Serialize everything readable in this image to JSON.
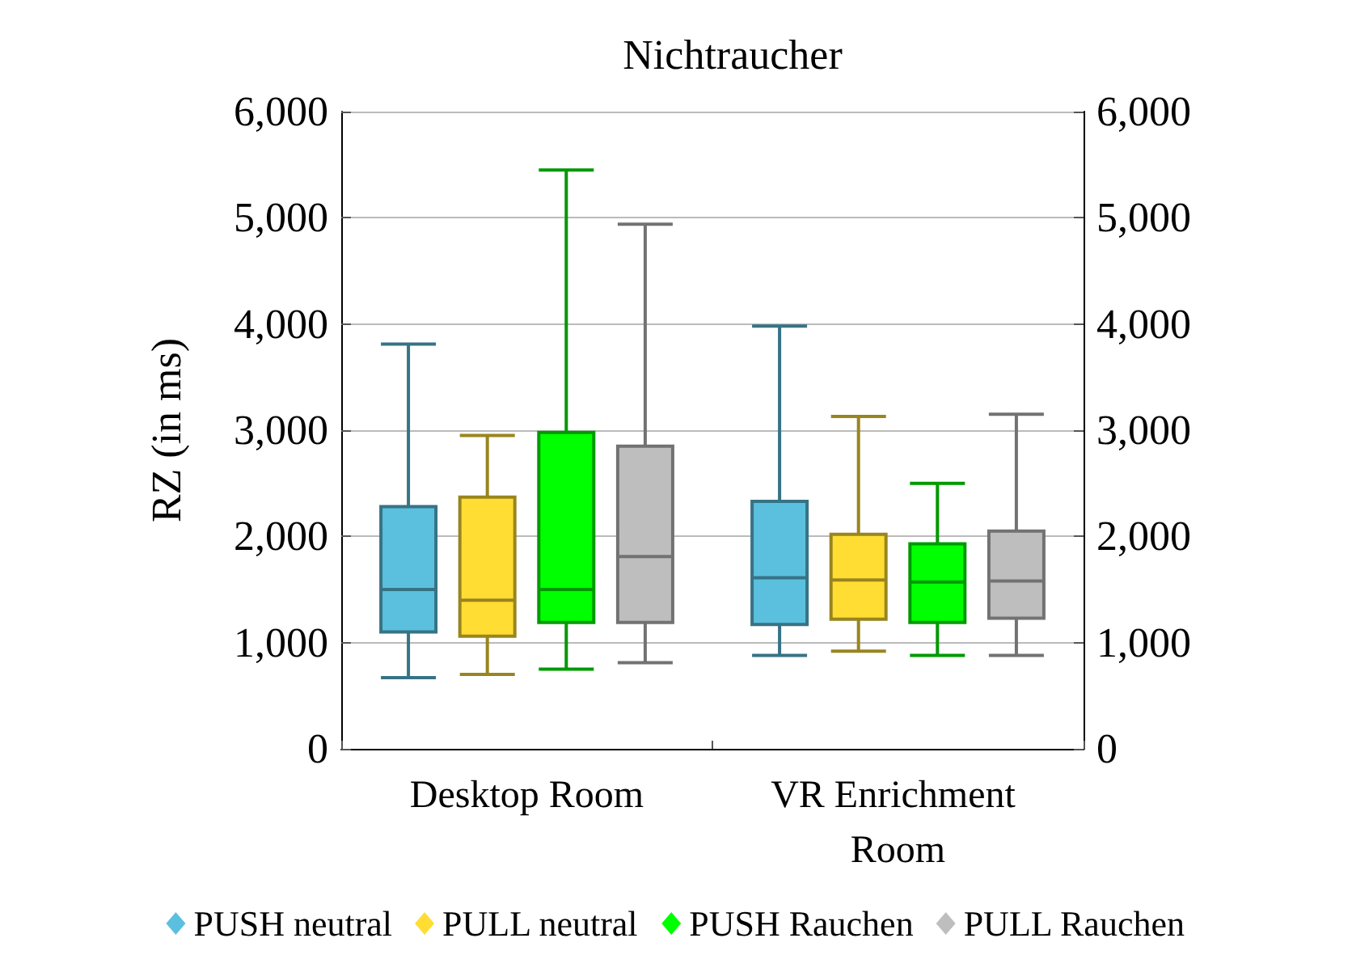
{
  "chart_data": {
    "type": "box",
    "title": "Nichtraucher",
    "ylabel": "RZ (in ms)",
    "categories": [
      "Desktop Room",
      "VR Enrichment Room"
    ],
    "series": [
      {
        "name": "PUSH neutral",
        "color": "#5bc0de",
        "boxes": [
          {
            "low": 670,
            "q1": 1100,
            "median": 1500,
            "q3": 2280,
            "high": 3810
          },
          {
            "low": 880,
            "q1": 1170,
            "median": 1610,
            "q3": 2330,
            "high": 3980
          }
        ]
      },
      {
        "name": "PULL neutral",
        "color": "#ffdd33",
        "boxes": [
          {
            "low": 700,
            "q1": 1060,
            "median": 1400,
            "q3": 2370,
            "high": 2950
          },
          {
            "low": 920,
            "q1": 1220,
            "median": 1590,
            "q3": 2020,
            "high": 3130
          }
        ]
      },
      {
        "name": "PUSH Rauchen",
        "color": "#00ff00",
        "boxes": [
          {
            "low": 750,
            "q1": 1190,
            "median": 1500,
            "q3": 2980,
            "high": 5450
          },
          {
            "low": 880,
            "q1": 1190,
            "median": 1570,
            "q3": 1930,
            "high": 2500
          }
        ]
      },
      {
        "name": "PULL Rauchen",
        "color": "#bebebe",
        "boxes": [
          {
            "low": 810,
            "q1": 1190,
            "median": 1810,
            "q3": 2850,
            "high": 4940
          },
          {
            "low": 880,
            "q1": 1230,
            "median": 1580,
            "q3": 2050,
            "high": 3150
          }
        ]
      }
    ],
    "ylim": [
      0,
      6000
    ],
    "yticks": [
      0,
      {
        "value": 1000,
        "label": "1,000"
      },
      {
        "value": 2000,
        "label": "2,000"
      },
      {
        "value": 3000,
        "label": "3,000"
      },
      {
        "value": 4000,
        "label": "4,000"
      },
      {
        "value": 5000,
        "label": "5,000"
      },
      {
        "value": 6000,
        "label": "6,000"
      }
    ],
    "y2lim": [
      0,
      6000
    ],
    "y2ticks": [
      0,
      {
        "value": 1000,
        "label": "1,000"
      },
      {
        "value": 2000,
        "label": "2,000"
      },
      {
        "value": 3000,
        "label": "3,000"
      },
      {
        "value": 4000,
        "label": "4,000"
      },
      {
        "value": 5000,
        "label": "5,000"
      },
      {
        "value": 6000,
        "label": "6,000"
      }
    ],
    "grid": "y",
    "legend": "bottom"
  }
}
